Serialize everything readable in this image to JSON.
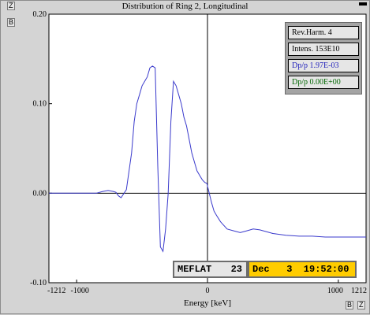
{
  "window": {
    "title": "Distribution of Ring 2, Longitudinal",
    "zoom_button_top": "Z",
    "option_button_top": "B",
    "option_button_bottom": "B",
    "zoom_button_bottom": "Z"
  },
  "info_panel": {
    "rev_harm": "Rev.Harm.   4",
    "intensity": "Intens.  153E10",
    "dpp_blue": "Dp/p  1.97E-03",
    "dpp_green": "Dp/p  0.00E+00"
  },
  "status": {
    "name": "MEFLAT",
    "number": "23",
    "date": "Dec   3  19:52:00"
  },
  "colors": {
    "trace": "#3a3acc",
    "status_highlight": "#ffcc00",
    "dpp_blue": "#2222bb",
    "dpp_green": "#006600"
  },
  "chart_data": {
    "type": "line",
    "title": "Distribution of Ring 2, Longitudinal",
    "xlabel": "Energy [keV]",
    "ylabel": "",
    "xlim": [
      -1212,
      1212
    ],
    "ylim": [
      -0.1,
      0.2
    ],
    "x_tick_labels": [
      "-1212",
      "-1000",
      "0",
      "1000",
      "1212"
    ],
    "x_ticks": [
      -1212,
      -1000,
      0,
      1000,
      1212
    ],
    "y_tick_labels": [
      "0.20",
      "0.10",
      "0.00",
      "-0.10"
    ],
    "y_ticks": [
      0.2,
      0.1,
      0.0,
      -0.1
    ],
    "grid": "crosshair at x=0 and y=0",
    "series": [
      {
        "x": [
          -1212,
          -850,
          -800,
          -760,
          -720,
          -700,
          -680,
          -660,
          -620,
          -580,
          -560,
          -540,
          -520,
          -500,
          -480,
          -460,
          -440,
          -420,
          -400,
          -380,
          -360,
          -340,
          -320,
          -300,
          -280,
          -260,
          -240,
          -220,
          -200,
          -180,
          -160,
          -140,
          -120,
          -100,
          -80,
          -60,
          -40,
          -20,
          -5,
          0,
          10,
          30,
          50,
          70,
          100,
          150,
          200,
          250,
          300,
          350,
          400,
          500,
          600,
          700,
          800,
          900,
          1000,
          1100,
          1212
        ],
        "y": [
          0.0,
          0.0,
          0.002,
          0.003,
          0.002,
          0.001,
          -0.003,
          -0.005,
          0.004,
          0.045,
          0.08,
          0.1,
          0.11,
          0.12,
          0.125,
          0.13,
          0.14,
          0.142,
          0.14,
          0.03,
          -0.06,
          -0.065,
          -0.04,
          0.0,
          0.08,
          0.125,
          0.12,
          0.11,
          0.1,
          0.085,
          0.075,
          0.06,
          0.045,
          0.035,
          0.025,
          0.02,
          0.015,
          0.012,
          0.011,
          0.008,
          0.002,
          -0.01,
          -0.02,
          -0.025,
          -0.032,
          -0.04,
          -0.042,
          -0.044,
          -0.042,
          -0.04,
          -0.041,
          -0.045,
          -0.047,
          -0.048,
          -0.048,
          -0.049,
          -0.049,
          -0.049,
          -0.049
        ]
      }
    ]
  }
}
